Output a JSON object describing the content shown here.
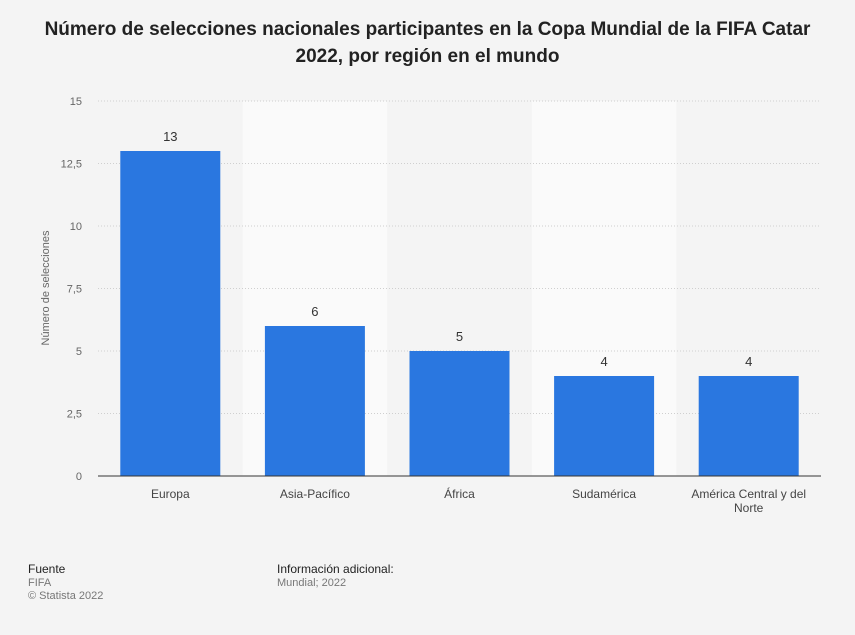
{
  "chart_data": {
    "type": "bar",
    "title": "Número de selecciones nacionales participantes en la Copa Mundial de la FIFA Catar 2022, por región en el mundo",
    "xlabel": "",
    "ylabel": "Número de selecciones",
    "categories": [
      "Europa",
      "Asia-Pacífico",
      "África",
      "Sudamérica",
      "América Central y del Norte"
    ],
    "values": [
      13,
      6,
      5,
      4,
      4
    ],
    "data_labels": [
      "13",
      "6",
      "5",
      "4",
      "4"
    ],
    "ylim": [
      0,
      15
    ],
    "yticks": [
      0,
      2.5,
      5,
      7.5,
      10,
      12.5,
      15
    ],
    "ytick_labels": [
      "0",
      "2,5",
      "5",
      "7,5",
      "10",
      "12,5",
      "15"
    ],
    "bar_color": "#2a77e0",
    "grid": true
  },
  "footer": {
    "source_heading": "Fuente",
    "source_lines": [
      "FIFA",
      "© Statista 2022"
    ],
    "info_heading": "Información adicional:",
    "info_lines": [
      "Mundial; 2022"
    ]
  }
}
